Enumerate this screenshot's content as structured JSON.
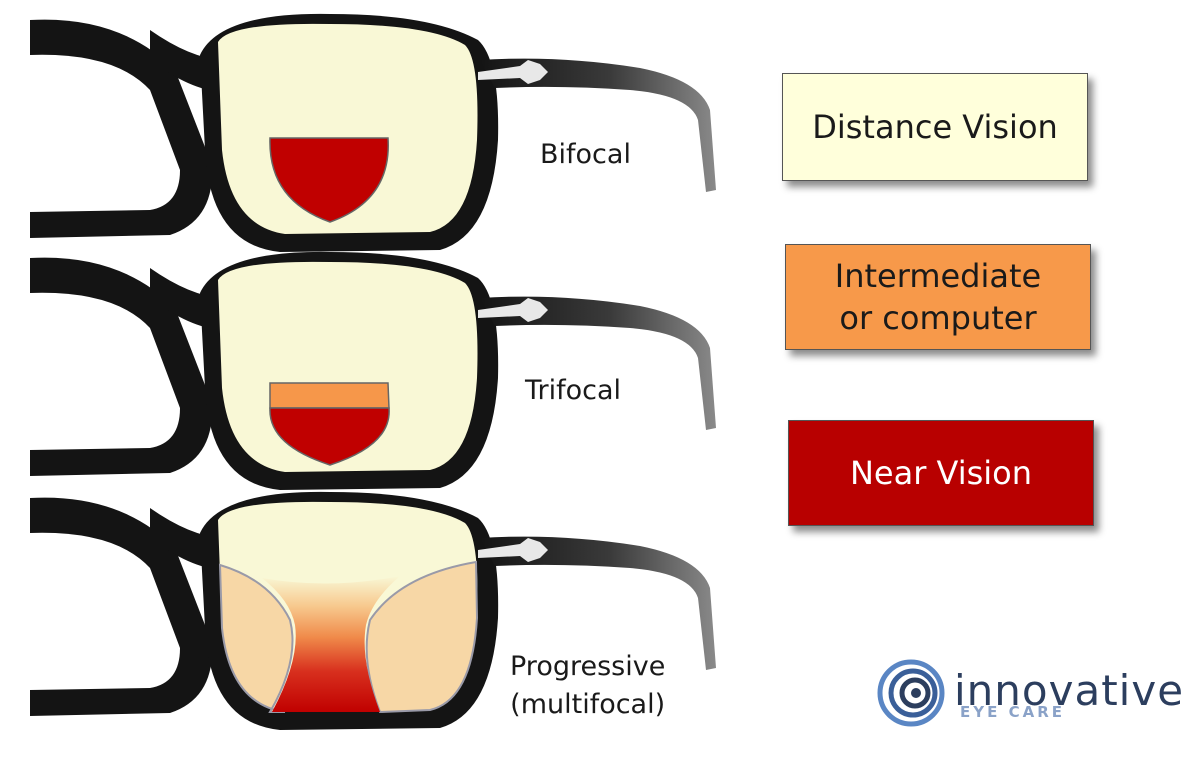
{
  "lens_types": [
    {
      "label": "Bifocal"
    },
    {
      "label": "Trifocal"
    },
    {
      "label_line1": "Progressive",
      "label_line2": "(multifocal)"
    }
  ],
  "legend": [
    {
      "lines": [
        "Distance Vision"
      ],
      "color": "#ffffdb",
      "text_color": "#1a1a1a"
    },
    {
      "lines": [
        "Intermediate",
        "or computer"
      ],
      "color": "#f7994a",
      "text_color": "#1a1a1a"
    },
    {
      "lines": [
        "Near Vision"
      ],
      "color": "#b80000",
      "text_color": "#ffffff"
    }
  ],
  "logo": {
    "name": "innovative",
    "sub": "EYE CARE"
  },
  "colors": {
    "frame": "#141414",
    "distance_zone": "#f9f8d6",
    "intermediate_zone": "#f6974a",
    "near_zone": "#c20000",
    "peripheral_zone": "#f7d7a6",
    "logo_ring": "#4a78b8"
  }
}
